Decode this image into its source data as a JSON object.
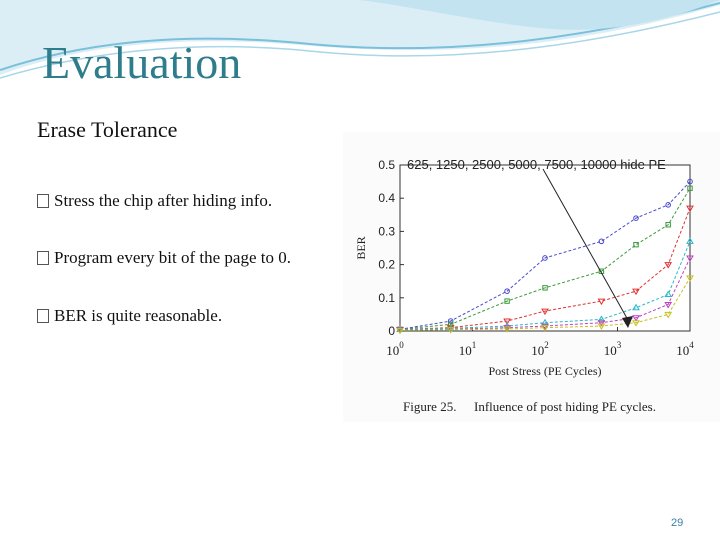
{
  "slide": {
    "title": "Evaluation",
    "subtitle": "Erase Tolerance",
    "bullets": [
      "Stress the chip after hiding info.",
      "Program every bit of the page to 0.",
      "BER is quite reasonable."
    ],
    "page_number": "29",
    "title_color": "#2e7d8c"
  },
  "figure": {
    "caption_label": "Figure 25.",
    "caption_text": "Influence of post hiding PE cycles."
  },
  "chart_data": {
    "type": "line",
    "annotation": "625, 1250, 2500, 5000, 7500, 10000 hide PE",
    "xlabel": "Post Stress (PE Cycles)",
    "ylabel": "BER",
    "xscale": "log",
    "xlim": [
      1,
      10000
    ],
    "ylim": [
      0,
      0.5
    ],
    "x_ticks": [
      {
        "base": "10",
        "exp": "0"
      },
      {
        "base": "10",
        "exp": "1"
      },
      {
        "base": "10",
        "exp": "2"
      },
      {
        "base": "10",
        "exp": "3"
      },
      {
        "base": "10",
        "exp": "4"
      }
    ],
    "y_ticks": [
      "0",
      "0.1",
      "0.2",
      "0.3",
      "0.4",
      "0.5"
    ],
    "y_tick_values": [
      0,
      0.1,
      0.2,
      0.3,
      0.4,
      0.5
    ],
    "grid": false,
    "series": [
      {
        "color": "#4a4ad0",
        "marker": "circle",
        "x": [
          1,
          5,
          30,
          100,
          600,
          1800,
          5000,
          10000
        ],
        "y": [
          0.005,
          0.03,
          0.12,
          0.22,
          0.27,
          0.34,
          0.38,
          0.45
        ]
      },
      {
        "color": "#3a9a3a",
        "marker": "square",
        "x": [
          1,
          5,
          30,
          100,
          600,
          1800,
          5000,
          10000
        ],
        "y": [
          0.005,
          0.02,
          0.09,
          0.13,
          0.18,
          0.26,
          0.32,
          0.43
        ]
      },
      {
        "color": "#e03030",
        "marker": "triangle-down",
        "x": [
          1,
          5,
          30,
          100,
          600,
          1800,
          5000,
          10000
        ],
        "y": [
          0.005,
          0.01,
          0.03,
          0.06,
          0.09,
          0.12,
          0.2,
          0.37
        ]
      },
      {
        "color": "#2ab8c8",
        "marker": "triangle-up",
        "x": [
          1,
          5,
          30,
          100,
          600,
          1800,
          5000,
          10000
        ],
        "y": [
          0.005,
          0.008,
          0.015,
          0.025,
          0.035,
          0.07,
          0.11,
          0.27
        ]
      },
      {
        "color": "#c040c0",
        "marker": "triangle-down",
        "x": [
          1,
          5,
          30,
          100,
          600,
          1800,
          5000,
          10000
        ],
        "y": [
          0.003,
          0.005,
          0.01,
          0.015,
          0.025,
          0.04,
          0.08,
          0.22
        ]
      },
      {
        "color": "#c8c020",
        "marker": "triangle-down",
        "x": [
          1,
          5,
          30,
          100,
          600,
          1800,
          5000,
          10000
        ],
        "y": [
          0.002,
          0.004,
          0.006,
          0.01,
          0.015,
          0.025,
          0.05,
          0.16
        ]
      }
    ]
  }
}
